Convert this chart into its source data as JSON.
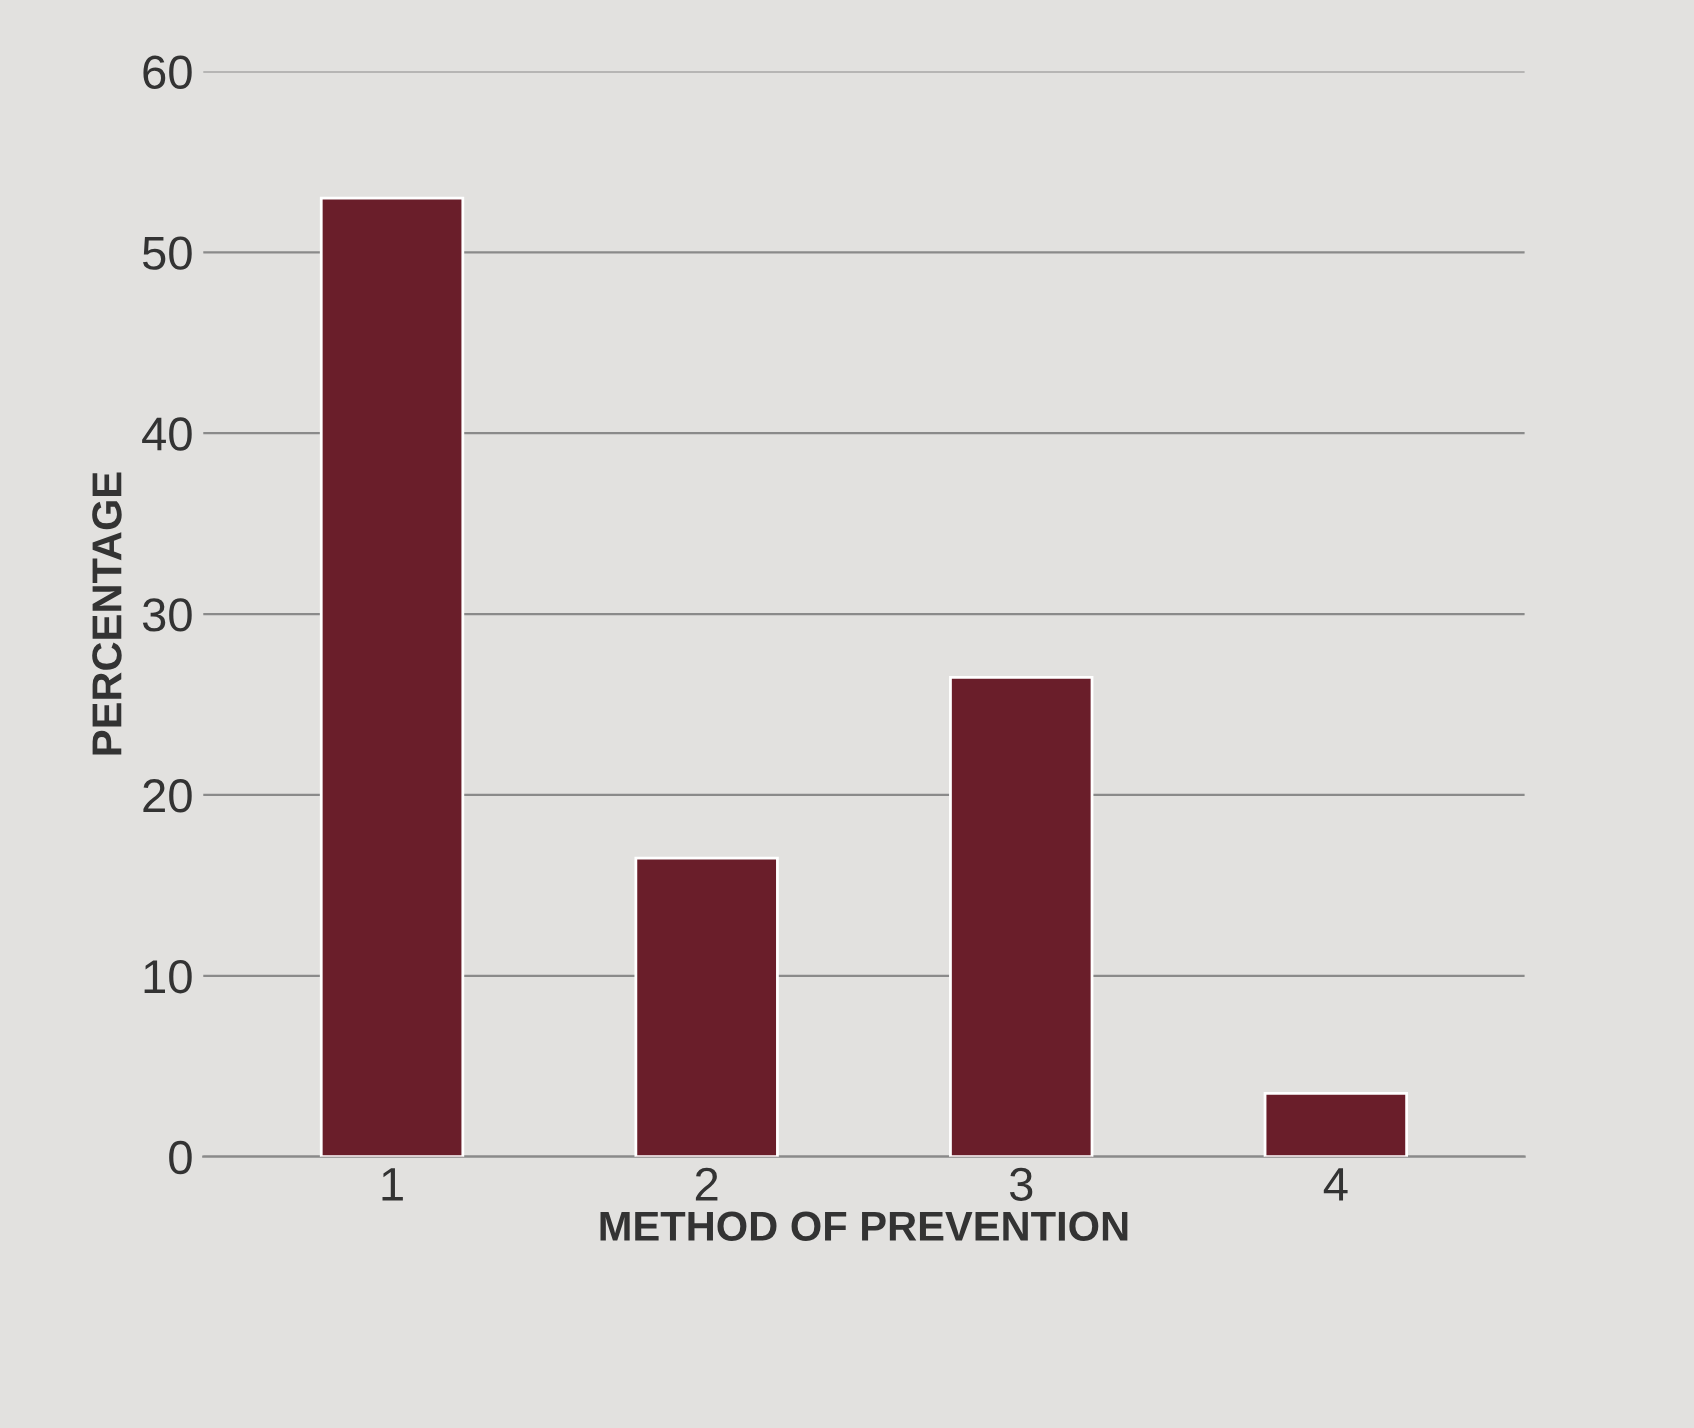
{
  "chart_data": {
    "type": "bar",
    "xlabel": "METHOD OF PREVENTION",
    "ylabel": "PERCENTAGE",
    "categories": [
      "1",
      "2",
      "3",
      "4"
    ],
    "values": [
      53,
      16.5,
      26.5,
      3.5
    ],
    "color": "#6a1e2a",
    "ylim": [
      0,
      60
    ],
    "yticks": [
      0,
      10,
      20,
      30,
      40,
      50,
      60
    ],
    "grid": "y",
    "legend": false
  }
}
